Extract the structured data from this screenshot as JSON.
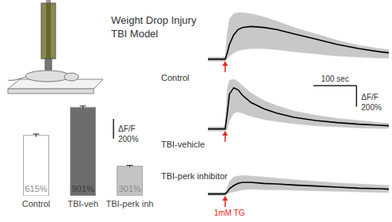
{
  "chart_data": [
    {
      "type": "bar",
      "title": "Weight Drop Injury",
      "subtitle": "TBI Model",
      "categories": [
        "Control",
        "TBI-veh",
        "TBI-perk inh"
      ],
      "values": [
        615,
        901,
        301
      ],
      "value_labels": [
        "615%",
        "901%",
        "301%"
      ],
      "data_labels": true,
      "errors": [
        14,
        12,
        9
      ],
      "colors": [
        "#ffffff",
        "#6d6d6d",
        "#c4c4c4"
      ],
      "ylim": [
        0,
        960
      ],
      "tick_labels": false,
      "scale_bar": {
        "label": "ΔF/F",
        "value": 200,
        "value_label": "200%"
      }
    },
    {
      "type": "line",
      "title": "Control",
      "x": [
        0,
        20,
        35,
        40,
        45,
        50,
        60,
        70,
        80,
        100,
        130,
        160,
        200,
        250,
        300,
        350,
        400,
        420
      ],
      "series": [
        {
          "type": "area",
          "color": "#c8c8c8",
          "lower": [
            -20,
            -20,
            -20,
            -20,
            0,
            30,
            60,
            80,
            90,
            100,
            100,
            90,
            70,
            50,
            30,
            20,
            10,
            10
          ],
          "upper": [
            20,
            20,
            20,
            30,
            250,
            380,
            430,
            440,
            440,
            430,
            400,
            360,
            300,
            240,
            180,
            130,
            100,
            90
          ]
        },
        {
          "type": "line",
          "color": "#000000",
          "values": [
            0,
            0,
            0,
            0,
            60,
            140,
            230,
            280,
            300,
            310,
            300,
            280,
            240,
            190,
            140,
            100,
            70,
            60
          ]
        }
      ],
      "xlim": [
        0,
        420
      ],
      "ylim": [
        -100,
        500
      ],
      "tick_labels": false,
      "annotations": [
        {
          "x": 40
        }
      ]
    },
    {
      "type": "line",
      "title": "TBI-vehicle",
      "x": [
        0,
        20,
        35,
        40,
        45,
        50,
        60,
        70,
        80,
        100,
        130,
        160,
        200,
        250,
        300,
        350,
        400,
        420
      ],
      "series": [
        {
          "type": "area",
          "color": "#c8c8c8",
          "lower": [
            -20,
            -20,
            -20,
            -20,
            0,
            80,
            150,
            160,
            150,
            120,
            90,
            70,
            50,
            30,
            20,
            10,
            5,
            5
          ],
          "upper": [
            20,
            20,
            20,
            30,
            380,
            460,
            470,
            450,
            410,
            340,
            270,
            220,
            170,
            130,
            100,
            80,
            60,
            55
          ]
        },
        {
          "type": "line",
          "color": "#000000",
          "values": [
            0,
            0,
            0,
            0,
            150,
            330,
            390,
            370,
            320,
            250,
            190,
            150,
            110,
            80,
            60,
            45,
            35,
            30
          ]
        }
      ],
      "xlim": [
        0,
        420
      ],
      "ylim": [
        -100,
        500
      ],
      "tick_labels": false,
      "annotations": [
        {
          "x": 40
        }
      ],
      "scale_bars": {
        "x": {
          "value": 100,
          "label": "100 sec"
        },
        "y": {
          "value": 200,
          "label": "ΔF/F",
          "value_label": "200%"
        }
      }
    },
    {
      "type": "line",
      "title": "TBI-perk inhibitor",
      "x": [
        0,
        20,
        35,
        40,
        45,
        50,
        60,
        70,
        80,
        100,
        130,
        160,
        200,
        250,
        300,
        350,
        400,
        420
      ],
      "series": [
        {
          "type": "area",
          "color": "#c8c8c8",
          "lower": [
            -15,
            -15,
            -15,
            -15,
            0,
            10,
            20,
            30,
            40,
            45,
            40,
            40,
            35,
            30,
            25,
            20,
            15,
            15
          ],
          "upper": [
            15,
            15,
            15,
            20,
            60,
            120,
            160,
            170,
            175,
            170,
            160,
            150,
            135,
            120,
            105,
            95,
            85,
            80
          ]
        },
        {
          "type": "line",
          "color": "#000000",
          "values": [
            0,
            0,
            0,
            0,
            20,
            50,
            80,
            100,
            110,
            110,
            100,
            95,
            85,
            75,
            65,
            55,
            50,
            45
          ]
        }
      ],
      "xlim": [
        0,
        420
      ],
      "ylim": [
        -100,
        500
      ],
      "tick_labels": false,
      "annotations": [
        {
          "x": 40,
          "text": "1mM TG"
        }
      ]
    }
  ]
}
